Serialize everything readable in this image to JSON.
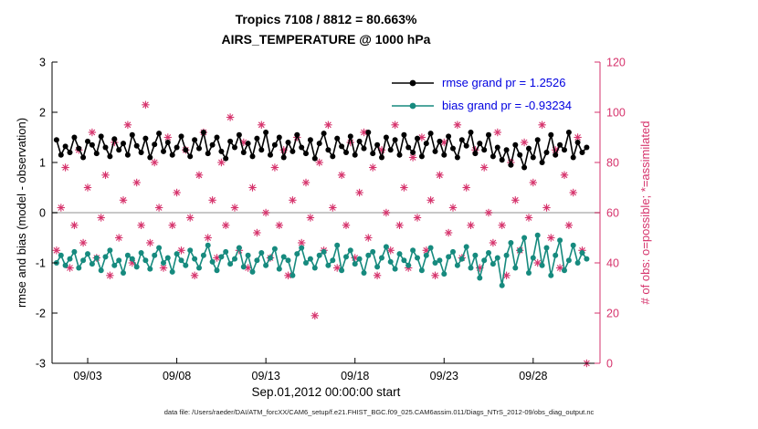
{
  "figure": {
    "title_line1": "Tropics 7108 / 8812 = 80.663%",
    "title_line2": "AIRS_TEMPERATURE @ 1000 hPa",
    "caption": "data file: /Users/raeder/DAI/ATM_forcXX/CAM6_setup/f.e21.FHIST_BGC.f09_025.CAM6assim.011/Diags_NTrS_2012-09/obs_diag_output.nc"
  },
  "chart_data": {
    "type": "line",
    "title": "Tropics 7108 / 8812 = 80.663%",
    "subtitle": "AIRS_TEMPERATURE @ 1000 hPa",
    "xlabel": "Sep.01,2012 00:00:00 start",
    "ylabel_left": "rmse and bias (model - observation)",
    "ylabel_right": "# of obs: o=possible; *=assimilated",
    "ylim_left": [
      -3,
      3
    ],
    "yticks_left": [
      -3,
      -2,
      -1,
      0,
      1,
      2,
      3
    ],
    "ylim_right": [
      0,
      120
    ],
    "yticks_right": [
      0,
      20,
      40,
      60,
      80,
      100,
      120
    ],
    "xlim_days": [
      0,
      30.75
    ],
    "xticks": [
      {
        "day": 2,
        "label": "09/03"
      },
      {
        "day": 7,
        "label": "09/08"
      },
      {
        "day": 12,
        "label": "09/13"
      },
      {
        "day": 17,
        "label": "09/18"
      },
      {
        "day": 22,
        "label": "09/23"
      },
      {
        "day": 27,
        "label": "09/28"
      }
    ],
    "legend": [
      {
        "label": "rmse grand pr = 1.2526",
        "color": "#000000",
        "marker": "circle-line"
      },
      {
        "label": "bias grand pr = -0.93234",
        "color": "#168a7e",
        "marker": "circle-line"
      }
    ],
    "colors": {
      "rmse": "#000000",
      "bias": "#168a7e",
      "obs": "#d6336c",
      "zero_line": "#c8c8c8",
      "legend_text": "#0000e0"
    },
    "series": {
      "n": 120,
      "t_start": 0.25,
      "t_step": 0.25,
      "rmse": [
        1.45,
        1.15,
        1.32,
        1.2,
        1.5,
        1.28,
        1.1,
        1.42,
        1.35,
        1.18,
        1.52,
        1.3,
        1.12,
        1.47,
        1.25,
        1.38,
        1.15,
        1.55,
        1.33,
        1.2,
        1.48,
        1.1,
        1.36,
        1.58,
        1.22,
        1.4,
        1.15,
        1.3,
        1.52,
        1.25,
        1.12,
        1.45,
        1.28,
        1.6,
        1.18,
        1.35,
        1.5,
        1.22,
        1.08,
        1.42,
        1.3,
        1.55,
        1.2,
        1.38,
        1.12,
        1.48,
        1.25,
        1.6,
        1.15,
        1.35,
        1.5,
        1.1,
        1.4,
        1.22,
        1.55,
        1.3,
        1.18,
        1.45,
        1.08,
        1.38,
        1.58,
        1.25,
        1.12,
        1.48,
        1.32,
        1.2,
        1.52,
        1.15,
        1.42,
        1.28,
        1.6,
        1.18,
        1.35,
        1.1,
        1.5,
        1.25,
        1.45,
        1.15,
        1.55,
        1.3,
        1.2,
        1.48,
        1.12,
        1.38,
        1.58,
        1.22,
        1.42,
        1.15,
        1.52,
        1.28,
        1.1,
        1.45,
        1.33,
        1.6,
        1.18,
        1.38,
        1.25,
        1.55,
        1.12,
        1.3,
        1.05,
        1.25,
        0.95,
        1.35,
        1.15,
        0.9,
        1.28,
        1.1,
        1.45,
        1.0,
        1.2,
        1.55,
        1.15,
        1.35,
        1.25,
        1.6,
        1.1,
        1.4,
        1.2,
        1.3
      ],
      "bias": [
        -1.0,
        -0.85,
        -1.05,
        -0.92,
        -0.78,
        -1.1,
        -0.95,
        -0.82,
        -1.02,
        -0.9,
        -1.15,
        -0.88,
        -0.75,
        -1.05,
        -0.95,
        -1.2,
        -0.85,
        -0.92,
        -1.08,
        -0.8,
        -0.95,
        -1.12,
        -0.85,
        -0.7,
        -1.0,
        -0.9,
        -1.18,
        -0.82,
        -0.95,
        -1.05,
        -0.75,
        -0.92,
        -1.1,
        -0.85,
        -0.65,
        -0.98,
        -1.15,
        -0.88,
        -0.78,
        -1.02,
        -0.92,
        -0.7,
        -1.08,
        -0.85,
        -1.18,
        -0.95,
        -0.8,
        -1.05,
        -0.9,
        -0.72,
        -1.12,
        -0.88,
        -0.95,
        -1.25,
        -0.82,
        -0.7,
        -1.0,
        -0.92,
        -1.1,
        -0.85,
        -0.78,
        -1.05,
        -0.95,
        -0.65,
        -1.15,
        -0.88,
        -0.75,
        -1.02,
        -0.92,
        -1.2,
        -0.85,
        -0.78,
        -1.08,
        -0.9,
        -0.68,
        -0.98,
        -1.12,
        -0.82,
        -0.95,
        -1.05,
        -0.75,
        -0.9,
        -1.15,
        -0.85,
        -0.7,
        -1.0,
        -0.95,
        -1.22,
        -0.88,
        -0.78,
        -1.05,
        -0.92,
        -0.68,
        -1.1,
        -0.85,
        -1.3,
        -0.95,
        -0.8,
        -1.02,
        -0.9,
        -1.45,
        -0.85,
        -0.6,
        -1.1,
        -0.75,
        -0.5,
        -1.2,
        -0.9,
        -0.45,
        -1.05,
        -0.7,
        -1.25,
        -0.85,
        -0.55,
        -1.15,
        -0.95,
        -0.65,
        -1.0,
        -0.8,
        -0.92
      ],
      "obs_assimilated": [
        45,
        62,
        78,
        38,
        55,
        85,
        48,
        70,
        92,
        42,
        58,
        75,
        35,
        88,
        50,
        65,
        95,
        40,
        72,
        55,
        103,
        48,
        80,
        62,
        38,
        90,
        55,
        68,
        45,
        85,
        58,
        35,
        75,
        92,
        50,
        65,
        42,
        80,
        55,
        98,
        62,
        45,
        88,
        38,
        70,
        52,
        95,
        60,
        42,
        78,
        55,
        85,
        35,
        65,
        90,
        48,
        72,
        58,
        19,
        80,
        45,
        95,
        62,
        38,
        75,
        55,
        88,
        42,
        68,
        92,
        50,
        78,
        35,
        85,
        60,
        45,
        95,
        55,
        70,
        38,
        82,
        58,
        90,
        45,
        65,
        35,
        75,
        88,
        52,
        62,
        95,
        42,
        70,
        55,
        85,
        38,
        78,
        60,
        48,
        92,
        55,
        35,
        80,
        65,
        45,
        88,
        58,
        72,
        40,
        95,
        62,
        50,
        85,
        38,
        75,
        55,
        68,
        90,
        45,
        0
      ]
    }
  }
}
